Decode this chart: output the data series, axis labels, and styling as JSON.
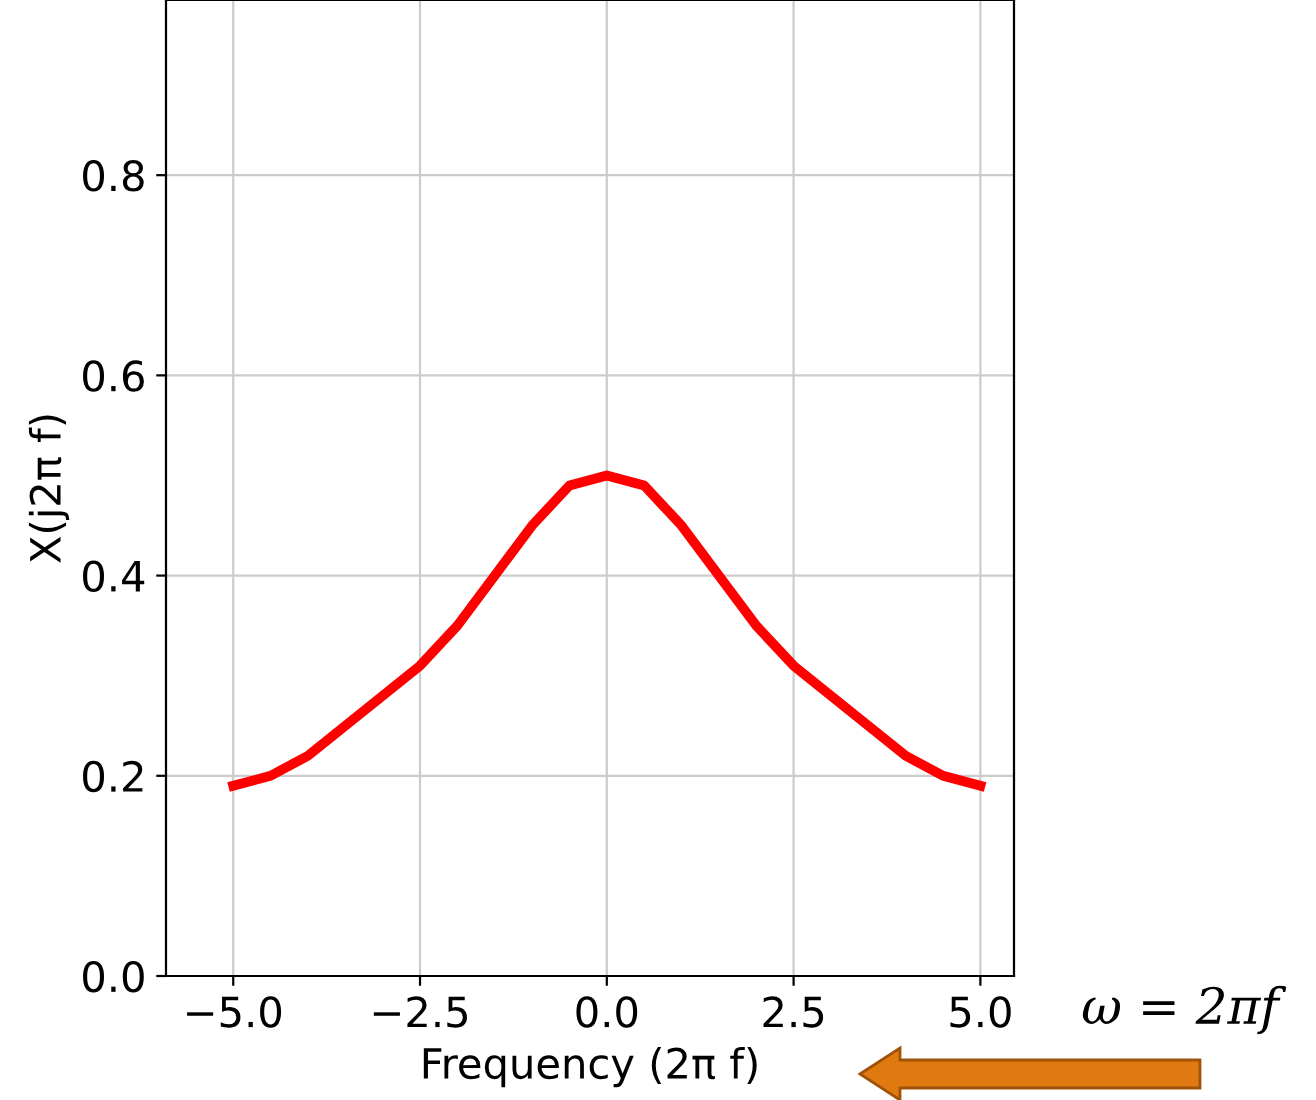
{
  "chart_data": {
    "type": "line",
    "xlabel": "Frequency (2π f)",
    "ylabel": "X(j2π f)",
    "x": [
      -5,
      -4.5,
      -4,
      -3.5,
      -3,
      -2.5,
      -2,
      -1.5,
      -1,
      -0.5,
      0,
      0.5,
      1,
      1.5,
      2,
      2.5,
      3,
      3.5,
      4,
      4.5,
      5
    ],
    "series": [
      {
        "color": "#ff0000",
        "values": [
          0.19,
          0.2,
          0.22,
          0.25,
          0.28,
          0.31,
          0.35,
          0.4,
          0.45,
          0.49,
          0.5,
          0.49,
          0.45,
          0.4,
          0.35,
          0.31,
          0.28,
          0.25,
          0.22,
          0.2,
          0.19
        ]
      }
    ],
    "xlim": [
      -5.9,
      5.45
    ],
    "xticks": [
      {
        "value": -5,
        "label": "−5.0"
      },
      {
        "value": -2.5,
        "label": "−2.5"
      },
      {
        "value": 0,
        "label": "0.0"
      },
      {
        "value": 2.5,
        "label": "2.5"
      },
      {
        "value": 5,
        "label": "5.0"
      }
    ],
    "ylim": [
      0,
      0.975
    ],
    "yticks": [
      {
        "value": 0,
        "label": "0.0"
      },
      {
        "value": 0.2,
        "label": "0.2"
      },
      {
        "value": 0.4,
        "label": "0.4"
      },
      {
        "value": 0.6,
        "label": "0.6"
      },
      {
        "value": 0.8,
        "label": "0.8"
      }
    ],
    "grid": true,
    "line_style": "solid",
    "marker": "none",
    "annotations": [
      "ω = 2πf"
    ]
  }
}
